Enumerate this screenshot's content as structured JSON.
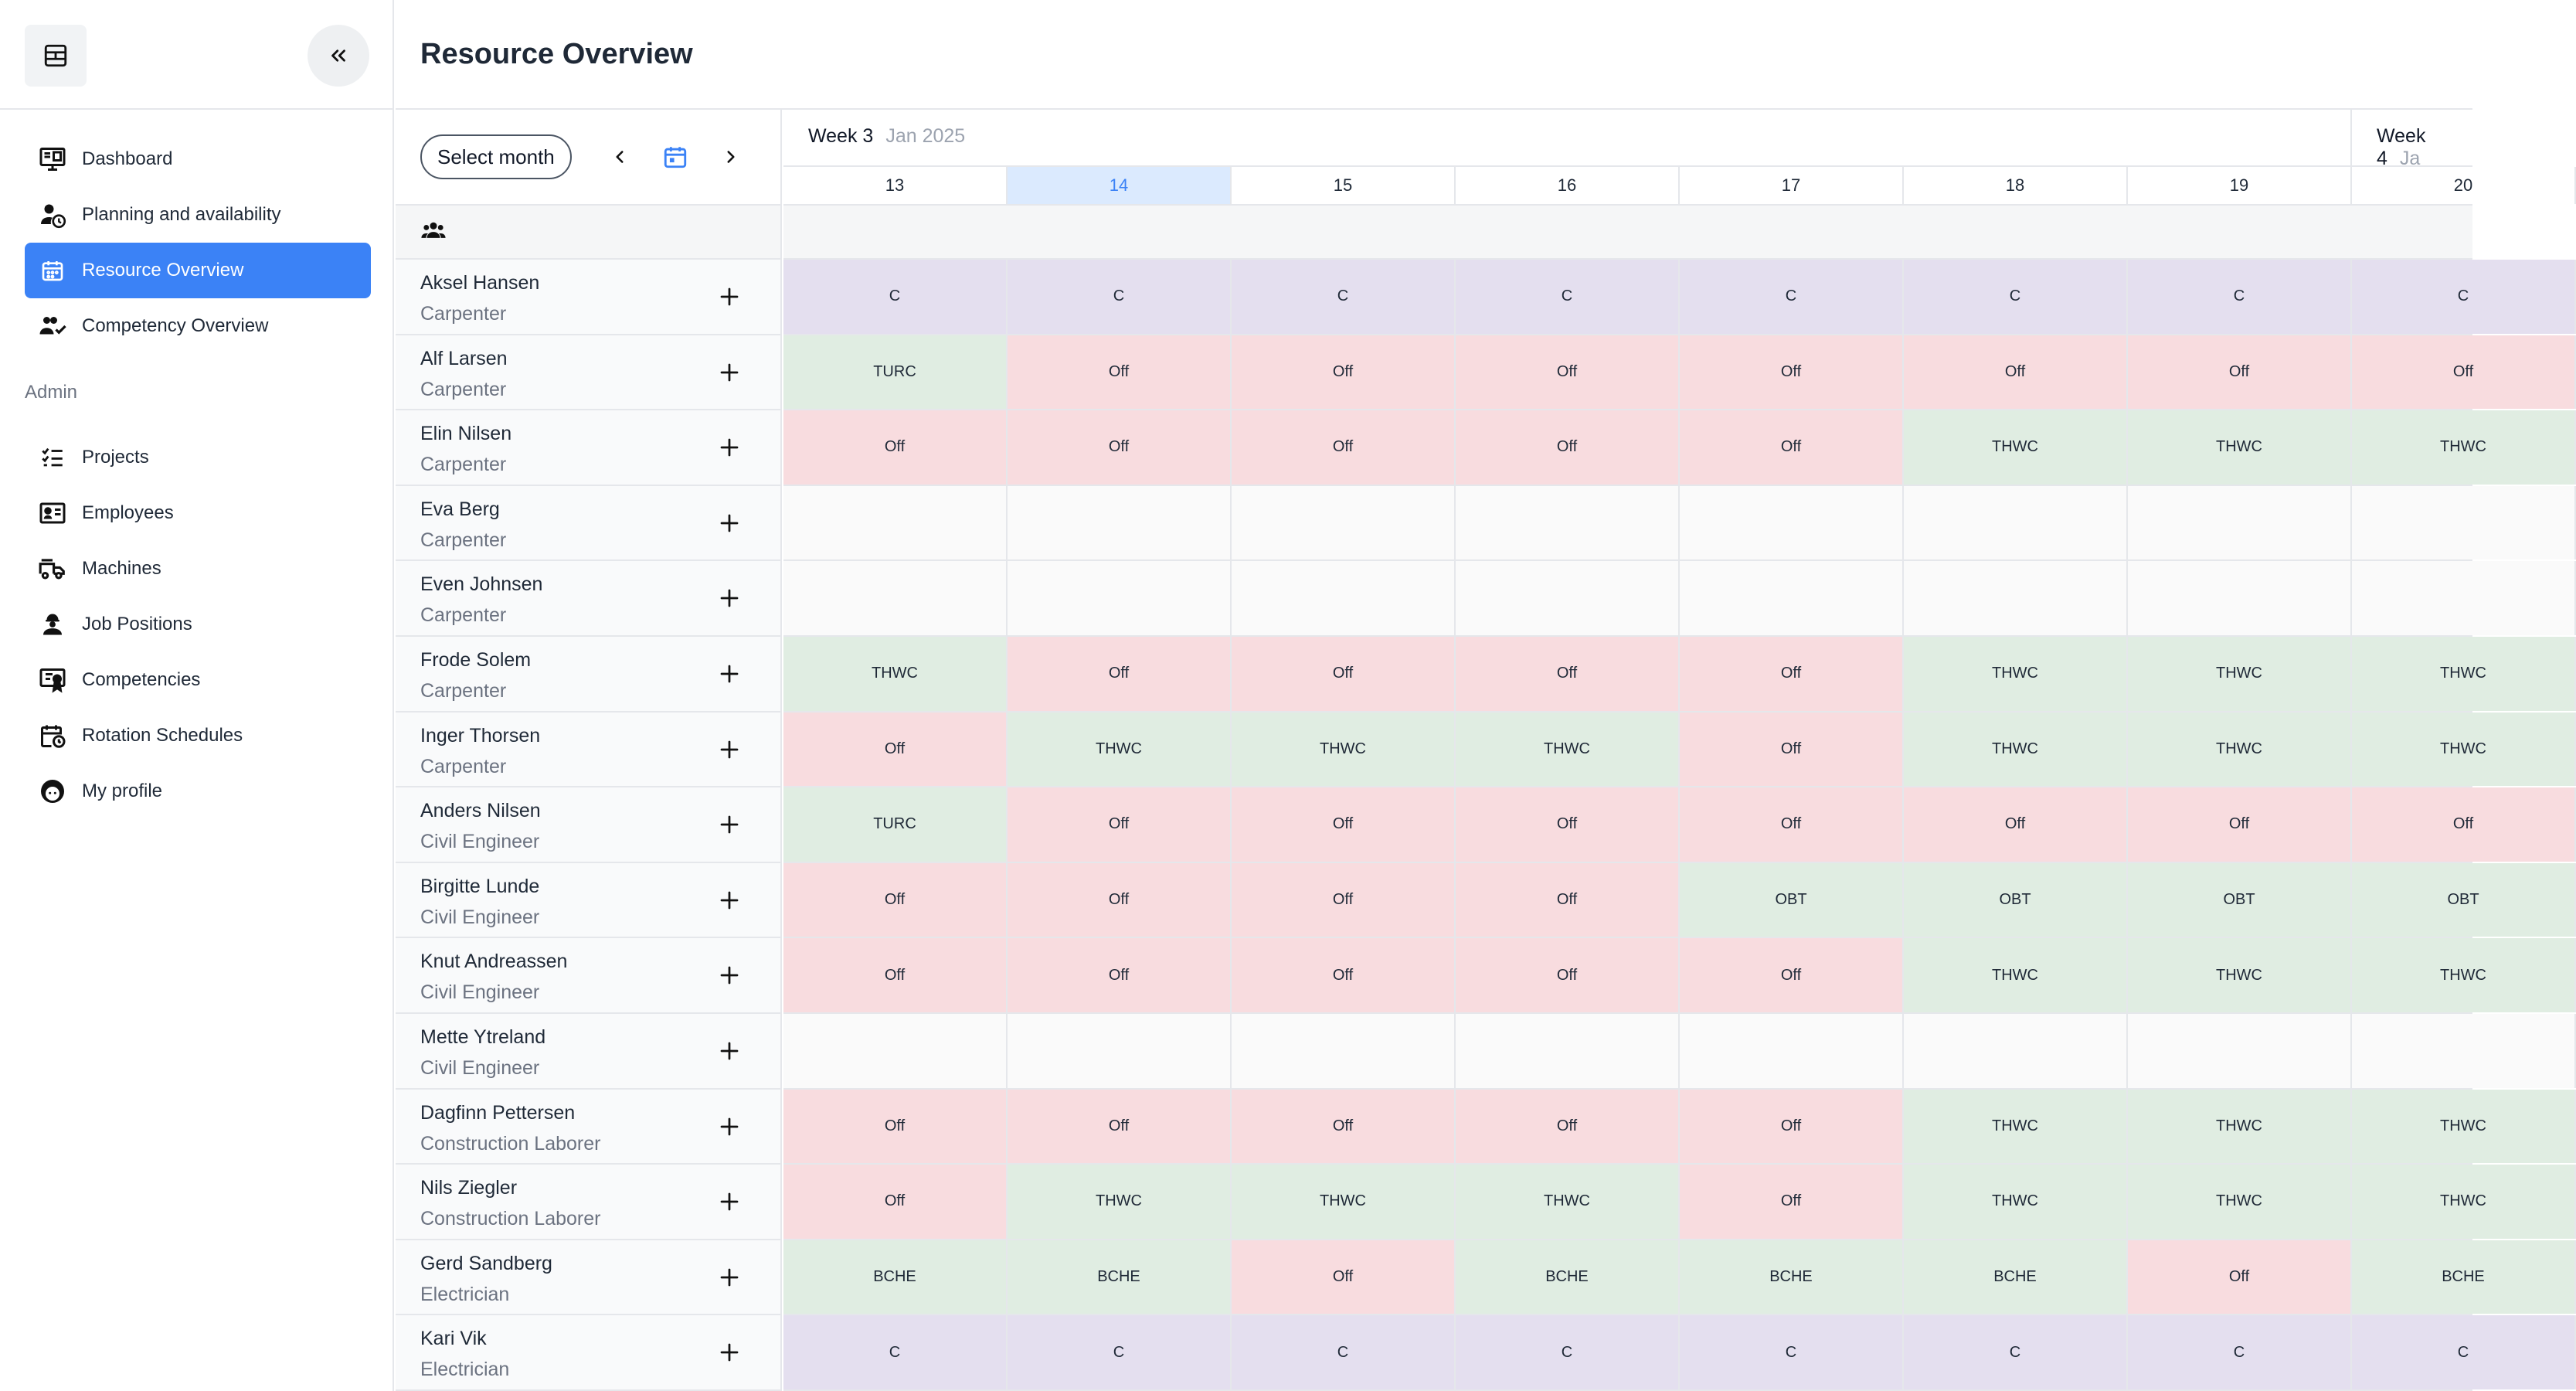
{
  "app": {
    "page_title": "Resource Overview"
  },
  "sidebar": {
    "items": [
      {
        "label": "Dashboard",
        "icon": "dashboard-icon",
        "active": false
      },
      {
        "label": "Planning and availability",
        "icon": "user-clock-icon",
        "active": false
      },
      {
        "label": "Resource Overview",
        "icon": "calendar-icon",
        "active": true
      },
      {
        "label": "Competency Overview",
        "icon": "users-check-icon",
        "active": false
      }
    ],
    "admin_label": "Admin",
    "admin_items": [
      {
        "label": "Projects",
        "icon": "checklist-icon"
      },
      {
        "label": "Employees",
        "icon": "id-card-icon"
      },
      {
        "label": "Machines",
        "icon": "truck-icon"
      },
      {
        "label": "Job Positions",
        "icon": "worker-icon"
      },
      {
        "label": "Competencies",
        "icon": "certificate-icon"
      },
      {
        "label": "Rotation Schedules",
        "icon": "calendar-clock-icon"
      },
      {
        "label": "My profile",
        "icon": "face-icon"
      }
    ]
  },
  "controls": {
    "select_month": "Select month"
  },
  "weeks": [
    {
      "label": "Week 3",
      "month": "Jan 2025"
    },
    {
      "label": "Week 4",
      "month": "Ja"
    }
  ],
  "days": [
    "13",
    "14",
    "15",
    "16",
    "17",
    "18",
    "19",
    "20"
  ],
  "today_index": 1,
  "status_colors": {
    "C": "#e4dfef",
    "Off": "#f8dcdf",
    "work": "#e0ede2",
    "empty": "#fafafa"
  },
  "employees": [
    {
      "name": "Aksel Hansen",
      "role": "Carpenter",
      "cells": [
        "C",
        "C",
        "C",
        "C",
        "C",
        "C",
        "C",
        "C"
      ]
    },
    {
      "name": "Alf Larsen",
      "role": "Carpenter",
      "cells": [
        "TURC",
        "Off",
        "Off",
        "Off",
        "Off",
        "Off",
        "Off",
        "Off"
      ]
    },
    {
      "name": "Elin Nilsen",
      "role": "Carpenter",
      "cells": [
        "Off",
        "Off",
        "Off",
        "Off",
        "Off",
        "THWC",
        "THWC",
        "THWC"
      ]
    },
    {
      "name": "Eva Berg",
      "role": "Carpenter",
      "cells": [
        "",
        "",
        "",
        "",
        "",
        "",
        "",
        ""
      ]
    },
    {
      "name": "Even Johnsen",
      "role": "Carpenter",
      "cells": [
        "",
        "",
        "",
        "",
        "",
        "",
        "",
        ""
      ]
    },
    {
      "name": "Frode Solem",
      "role": "Carpenter",
      "cells": [
        "THWC",
        "Off",
        "Off",
        "Off",
        "Off",
        "THWC",
        "THWC",
        "THWC"
      ]
    },
    {
      "name": "Inger Thorsen",
      "role": "Carpenter",
      "cells": [
        "Off",
        "THWC",
        "THWC",
        "THWC",
        "Off",
        "THWC",
        "THWC",
        "THWC"
      ]
    },
    {
      "name": "Anders Nilsen",
      "role": "Civil Engineer",
      "cells": [
        "TURC",
        "Off",
        "Off",
        "Off",
        "Off",
        "Off",
        "Off",
        "Off"
      ]
    },
    {
      "name": "Birgitte Lunde",
      "role": "Civil Engineer",
      "cells": [
        "Off",
        "Off",
        "Off",
        "Off",
        "OBT",
        "OBT",
        "OBT",
        "OBT"
      ]
    },
    {
      "name": "Knut Andreassen",
      "role": "Civil Engineer",
      "cells": [
        "Off",
        "Off",
        "Off",
        "Off",
        "Off",
        "THWC",
        "THWC",
        "THWC"
      ]
    },
    {
      "name": "Mette Ytreland",
      "role": "Civil Engineer",
      "cells": [
        "",
        "",
        "",
        "",
        "",
        "",
        "",
        ""
      ]
    },
    {
      "name": "Dagfinn Pettersen",
      "role": "Construction Laborer",
      "cells": [
        "Off",
        "Off",
        "Off",
        "Off",
        "Off",
        "THWC",
        "THWC",
        "THWC"
      ]
    },
    {
      "name": "Nils Ziegler",
      "role": "Construction Laborer",
      "cells": [
        "Off",
        "THWC",
        "THWC",
        "THWC",
        "Off",
        "THWC",
        "THWC",
        "THWC"
      ]
    },
    {
      "name": "Gerd Sandberg",
      "role": "Electrician",
      "cells": [
        "BCHE",
        "BCHE",
        "Off",
        "BCHE",
        "BCHE",
        "BCHE",
        "Off",
        "BCHE"
      ]
    },
    {
      "name": "Kari Vik",
      "role": "Electrician",
      "cells": [
        "C",
        "C",
        "C",
        "C",
        "C",
        "C",
        "C",
        "C"
      ]
    }
  ]
}
